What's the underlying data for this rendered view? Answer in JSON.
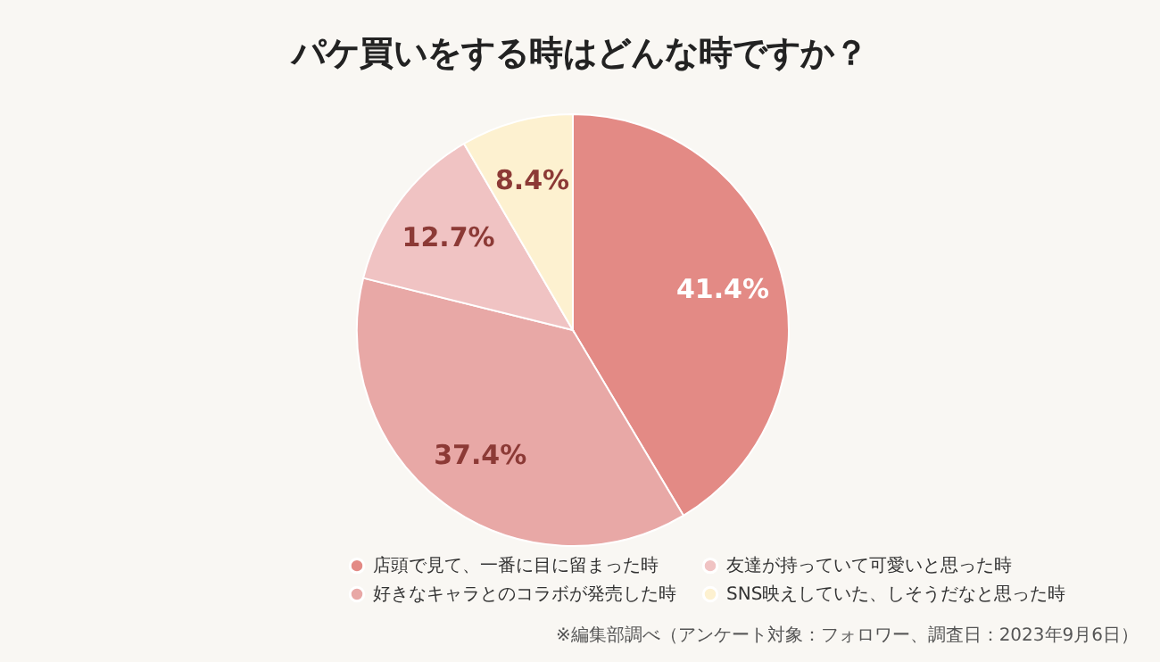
{
  "chart_data": {
    "type": "pie",
    "title": "パケ買いをする時はどんな時ですか？",
    "categories": [
      "店頭で見て、一番に目に留まった時",
      "好きなキャラとのコラボが発売した時",
      "友達が持っていて可愛いと思った時",
      "SNS映えしていた、しそうだなと思った時"
    ],
    "values": [
      41.4,
      37.4,
      12.7,
      8.4
    ],
    "colors": [
      "#e38a85",
      "#e8a8a6",
      "#f0c3c3",
      "#fdf1d0"
    ],
    "value_labels": [
      "41.4%",
      "37.4%",
      "12.7%",
      "8.4%"
    ],
    "legend": "bottom",
    "annotations": [
      "※編集部調べ（アンケート対象：フォロワー、調査日：2023年9月6日）"
    ]
  }
}
